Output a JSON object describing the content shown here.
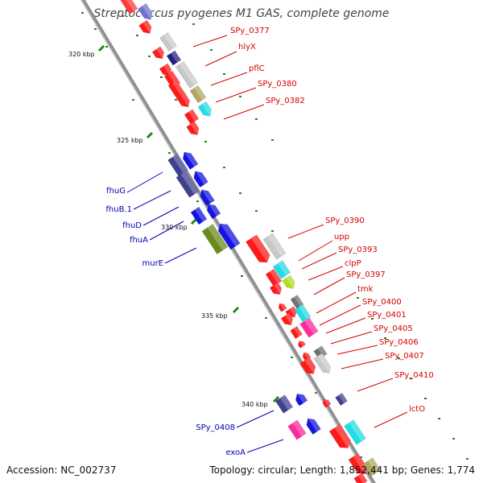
{
  "title": "Streptococcus pyogenes M1 GAS, complete genome",
  "footer": {
    "accession": "Accession: NC_002737",
    "summary": "Topology: circular; Length: 1,852,441 bp; Genes: 1,774"
  },
  "colors": {
    "backbone": "#8f8f8f",
    "ruler_dot": "#1a8a1a",
    "forward_label": "#d40000",
    "reverse_label": "#0000b0",
    "kbp_label": "#111111"
  },
  "ruler_labels": [
    {
      "text": "320 kbp",
      "kbp": 320
    },
    {
      "text": "325 kbp",
      "kbp": 325
    },
    {
      "text": "330 kbp",
      "kbp": 330
    },
    {
      "text": "335 kbp",
      "kbp": 335
    },
    {
      "text": "340 kbp",
      "kbp": 340
    }
  ],
  "forward_labels": [
    {
      "text": "SPy_0377"
    },
    {
      "text": "hlyX"
    },
    {
      "text": "pflC"
    },
    {
      "text": "SPy_0380"
    },
    {
      "text": "SPy_0382"
    },
    {
      "text": "SPy_0390"
    },
    {
      "text": "upp"
    },
    {
      "text": "SPy_0393"
    },
    {
      "text": "clpP"
    },
    {
      "text": "SPy_0397"
    },
    {
      "text": "tmk"
    },
    {
      "text": "SPy_0400"
    },
    {
      "text": "SPy_0401"
    },
    {
      "text": "SPy_0405"
    },
    {
      "text": "SPy_0406"
    },
    {
      "text": "SPy_0407"
    },
    {
      "text": "SPy_0410"
    },
    {
      "text": "lctO"
    }
  ],
  "reverse_labels": [
    {
      "text": "fhuG"
    },
    {
      "text": "fhuB.1"
    },
    {
      "text": "fhuD"
    },
    {
      "text": "fhuA"
    },
    {
      "text": "murE"
    },
    {
      "text": "SPy_0408"
    },
    {
      "text": "exoA"
    }
  ]
}
